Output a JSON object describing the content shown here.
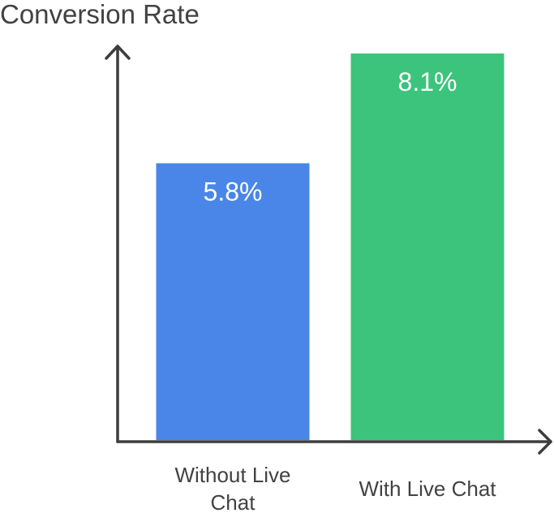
{
  "chart_data": {
    "type": "bar",
    "title": "",
    "ylabel": "Conversion Rate",
    "xlabel": "",
    "categories": [
      "Without Live Chat",
      "With Live Chat"
    ],
    "values": [
      5.8,
      8.1
    ],
    "value_labels": [
      "5.8%",
      "8.1%"
    ],
    "bar_colors": [
      "#4a86e8",
      "#3cc47c"
    ],
    "ylim": [
      0,
      8.1
    ],
    "grid": false,
    "legend": "none"
  },
  "colors": {
    "axis": "#3d3d3d",
    "text": "#424242",
    "value_text": "#ffffff",
    "background": "#ffffff"
  }
}
